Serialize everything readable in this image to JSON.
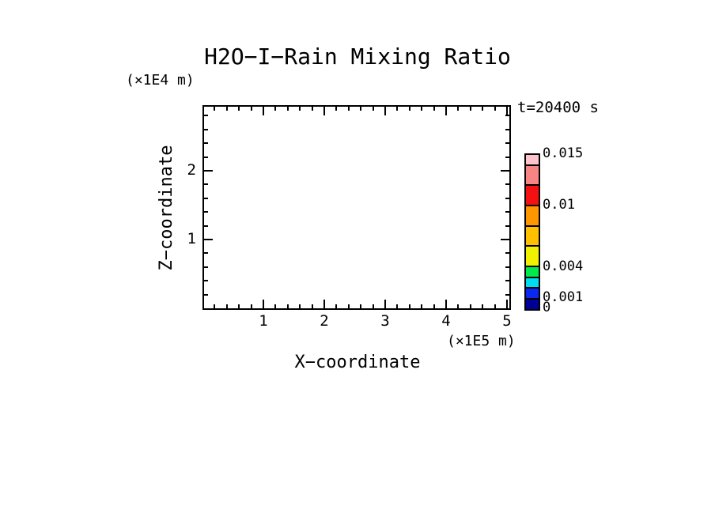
{
  "title": "H2O−I−Rain Mixing Ratio",
  "time_label": "t=20400 s",
  "axes": {
    "x": {
      "label": "X−coordinate",
      "unit": "(×1E5 m)",
      "min": 0,
      "max": 5.06,
      "major_ticks": [
        1,
        2,
        3,
        4,
        5
      ],
      "minor_step": 0.2
    },
    "y": {
      "label": "Z−coordinate",
      "unit": "(×1E4 m)",
      "min": 0,
      "max": 2.97,
      "major_ticks": [
        1,
        2
      ],
      "minor_step": 0.2
    }
  },
  "colorbar": {
    "max": 0.015,
    "levels": [
      0,
      0.001,
      0.002,
      0.003,
      0.004,
      0.006,
      0.008,
      0.01,
      0.012,
      0.014,
      0.015
    ],
    "colors_bottom_to_top": [
      "#000096",
      "#0A28F0",
      "#00DCF0",
      "#00EB4B",
      "#F0F000",
      "#FFC000",
      "#FF9600",
      "#F51111",
      "#F98484",
      "#FFC3CB"
    ],
    "labels": [
      {
        "value": 0.015,
        "text": "0.015"
      },
      {
        "value": 0.01,
        "text": "0.01"
      },
      {
        "value": 0.004,
        "text": "0.004"
      },
      {
        "value": 0.001,
        "text": "0.001"
      },
      {
        "value": 0,
        "text": "0"
      }
    ]
  },
  "chart_data": {
    "type": "heatmap",
    "title": "H2O−I−Rain Mixing Ratio",
    "xlabel": "X−coordinate (×1E5 m)",
    "ylabel": "Z−coordinate (×1E4 m)",
    "x_range": [
      0,
      5.06
    ],
    "y_range": [
      0,
      2.97
    ],
    "x_major_ticks": [
      1,
      2,
      3,
      4,
      5
    ],
    "y_major_ticks": [
      1,
      2
    ],
    "minor_tick_step": 0.2,
    "time_annotation": "t=20400 s",
    "color_levels": [
      0,
      0.001,
      0.002,
      0.003,
      0.004,
      0.006,
      0.008,
      0.01,
      0.012,
      0.014,
      0.015
    ],
    "color_level_labels": [
      "0",
      "0.001",
      "0.004",
      "0.01",
      "0.015"
    ],
    "series": [],
    "note": "plot area is blank: no rain mixing ratio at or above the lowest color level is visible at t=20400 s"
  }
}
